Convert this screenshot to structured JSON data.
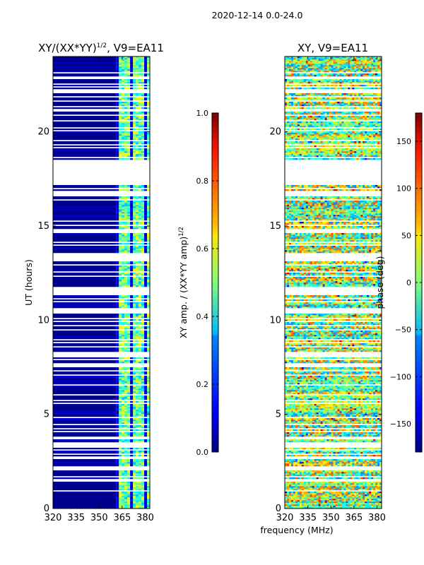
{
  "suptitle": "2020-12-14 0.0-24.0",
  "shared_xlabel": "frequency (MHz)",
  "chart_data": [
    {
      "type": "heatmap",
      "title": "XY/(XX*YY)^1/2, V9=EA11",
      "title_main": "XY/(XX*YY)",
      "title_sup": "1/2",
      "title_rest": ", V9=EA11",
      "xlabel": "frequency (MHz)",
      "ylabel": "UT (hours)",
      "xlim": [
        320,
        383
      ],
      "ylim": [
        0,
        24
      ],
      "xticks": [
        320,
        335,
        350,
        365,
        380
      ],
      "yticks": [
        0,
        5,
        10,
        15,
        20
      ],
      "colorbar": {
        "label": "XY amp. / (XX*YY amp)^1/2",
        "label_main": "XY amp. / (XX*YY amp)",
        "label_sup": "1/2",
        "range": [
          0.0,
          1.0
        ],
        "ticks": [
          0.0,
          0.2,
          0.4,
          0.6,
          0.8,
          1.0
        ],
        "tick_labels": [
          "0.0",
          "0.2",
          "0.4",
          "0.6",
          "0.8",
          "1.0"
        ]
      },
      "blank_hour_ranges": [
        [
          17.2,
          18.5
        ],
        [
          11.3,
          11.8
        ]
      ],
      "low_value_channel_range_mhz": [
        320,
        361
      ],
      "active_channel_range_mhz": [
        361,
        383
      ]
    },
    {
      "type": "heatmap",
      "title": "XY, V9=EA11",
      "xlabel": "frequency (MHz)",
      "ylabel": "",
      "xlim": [
        320,
        383
      ],
      "ylim": [
        0,
        24
      ],
      "xticks": [
        320,
        335,
        350,
        365,
        380
      ],
      "yticks": [
        0,
        5,
        10,
        15,
        20
      ],
      "colorbar": {
        "label": "phase (deg)",
        "range": [
          -180,
          180
        ],
        "ticks": [
          -150,
          -100,
          -50,
          0,
          50,
          100,
          150
        ],
        "tick_labels": [
          "−150",
          "−100",
          "−50",
          "0",
          "50",
          "100",
          "150"
        ]
      },
      "blank_hour_ranges": [
        [
          17.2,
          18.5
        ],
        [
          11.3,
          11.8
        ]
      ]
    }
  ]
}
